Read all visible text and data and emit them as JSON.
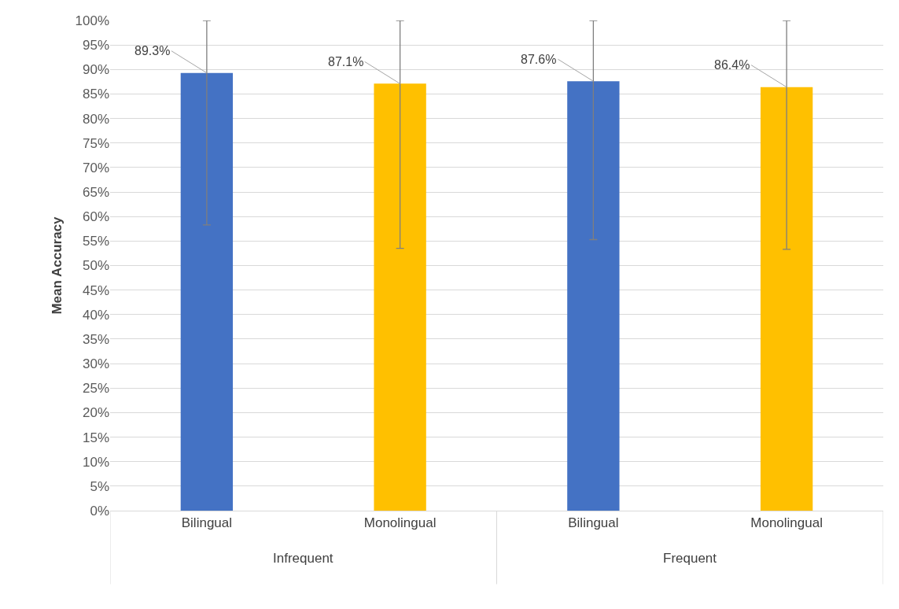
{
  "chart_data": {
    "type": "bar",
    "ylabel": "Mean Accuracy",
    "categories": [
      "Bilingual",
      "Monolingual",
      "Bilingual",
      "Monolingual"
    ],
    "values": [
      89.3,
      87.1,
      87.6,
      86.4
    ],
    "colors": [
      "#4472c4",
      "#ffc000",
      "#4472c4",
      "#ffc000"
    ],
    "value_labels": [
      "89.3%",
      "87.1%",
      "87.6%",
      "86.4%"
    ],
    "errors": [
      [
        58.3,
        100
      ],
      [
        53.5,
        100
      ],
      [
        55.3,
        100
      ],
      [
        53.3,
        100
      ]
    ],
    "annotations": [
      "Infrequent",
      "Frequent"
    ],
    "ylim": [
      0,
      100
    ],
    "yticks": [
      {
        "value": 0,
        "label": "0%"
      },
      {
        "value": 5,
        "label": "5%"
      },
      {
        "value": 10,
        "label": "10%"
      },
      {
        "value": 15,
        "label": "15%"
      },
      {
        "value": 20,
        "label": "20%"
      },
      {
        "value": 25,
        "label": "25%"
      },
      {
        "value": 30,
        "label": "30%"
      },
      {
        "value": 35,
        "label": "35%"
      },
      {
        "value": 40,
        "label": "40%"
      },
      {
        "value": 45,
        "label": "45%"
      },
      {
        "value": 50,
        "label": "50%"
      },
      {
        "value": 55,
        "label": "55%"
      },
      {
        "value": 60,
        "label": "60%"
      },
      {
        "value": 65,
        "label": "65%"
      },
      {
        "value": 70,
        "label": "70%"
      },
      {
        "value": 75,
        "label": "75%"
      },
      {
        "value": 80,
        "label": "80%"
      },
      {
        "value": 85,
        "label": "85%"
      },
      {
        "value": 90,
        "label": "90%"
      },
      {
        "value": 95,
        "label": "95%"
      },
      {
        "value": 100,
        "label": "100%"
      }
    ],
    "grid": "y"
  }
}
